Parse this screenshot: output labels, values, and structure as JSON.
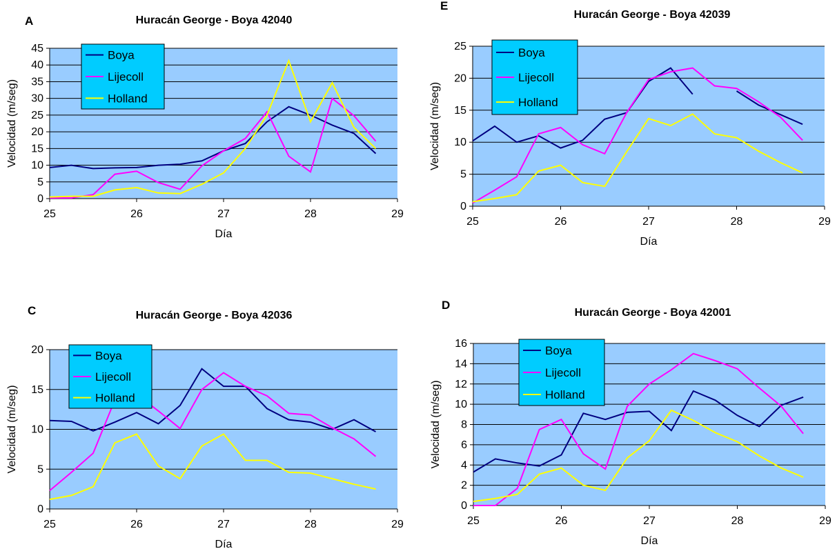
{
  "colors": {
    "plot_bg": "#99ccff",
    "legend_bg": "#00ccff",
    "grid": "#000000",
    "boya": "#000080",
    "lijecoll": "#ff00ff",
    "holland": "#ffff00"
  },
  "chart_data": [
    {
      "panel": "A",
      "type": "line",
      "title": "Huracán George - Boya 42040",
      "xlabel": "Día",
      "ylabel": "Velocidad (m/seg)",
      "xlim": [
        25,
        29
      ],
      "ylim": [
        0,
        45
      ],
      "xticks": [
        25,
        26,
        27,
        28,
        29
      ],
      "yticks": [
        0,
        5,
        10,
        15,
        20,
        25,
        30,
        35,
        40,
        45
      ],
      "grid": true,
      "legend": "top-left",
      "series": [
        {
          "name": "Boya",
          "color": "#000080",
          "points": [
            [
              25,
              9.3
            ],
            [
              25.25,
              10
            ],
            [
              25.5,
              9
            ],
            [
              25.75,
              9.2
            ],
            [
              26,
              9.3
            ],
            [
              26.25,
              10
            ],
            [
              26.5,
              10.3
            ],
            [
              26.75,
              11.3
            ],
            [
              27,
              14.3
            ],
            [
              27.25,
              16.5
            ],
            [
              27.5,
              23
            ],
            [
              27.75,
              27.5
            ],
            [
              28,
              25
            ],
            [
              28.25,
              22
            ],
            [
              28.5,
              19.5
            ],
            [
              28.75,
              13.5
            ]
          ]
        },
        {
          "name": "Lijecoll",
          "color": "#ff00ff",
          "points": [
            [
              25,
              0.2
            ],
            [
              25.25,
              0.2
            ],
            [
              25.5,
              1.2
            ],
            [
              25.75,
              7.3
            ],
            [
              26,
              8.2
            ],
            [
              26.25,
              4.8
            ],
            [
              26.5,
              2.8
            ],
            [
              26.75,
              9.8
            ],
            [
              27,
              14.3
            ],
            [
              27.25,
              18
            ],
            [
              27.5,
              26
            ],
            [
              27.75,
              12.7
            ],
            [
              28,
              8
            ],
            [
              28.25,
              30
            ],
            [
              28.5,
              24.8
            ],
            [
              28.75,
              17.2
            ]
          ]
        },
        {
          "name": "Holland",
          "color": "#ffff00",
          "points": [
            [
              25,
              0.5
            ],
            [
              25.25,
              0.7
            ],
            [
              25.5,
              0.7
            ],
            [
              25.75,
              2.6
            ],
            [
              26,
              3.3
            ],
            [
              26.25,
              1.7
            ],
            [
              26.5,
              1.5
            ],
            [
              26.75,
              4.3
            ],
            [
              27,
              7.7
            ],
            [
              27.25,
              15
            ],
            [
              27.5,
              25
            ],
            [
              27.75,
              41.3
            ],
            [
              28,
              23
            ],
            [
              28.25,
              34.7
            ],
            [
              28.5,
              21.3
            ],
            [
              28.75,
              15
            ]
          ]
        }
      ]
    },
    {
      "panel": "E",
      "type": "line",
      "title": "Huracán George - Boya 42039",
      "xlabel": "Día",
      "ylabel": "Velocidad (m/seg)",
      "xlim": [
        25,
        29
      ],
      "ylim": [
        0,
        25
      ],
      "xticks": [
        25,
        26,
        27,
        28,
        29
      ],
      "yticks": [
        0,
        5,
        10,
        15,
        20,
        25
      ],
      "grid": true,
      "legend": "top-left",
      "series": [
        {
          "name": "Boya",
          "color": "#000080",
          "segments": [
            [
              [
                25,
                10.2
              ],
              [
                25.25,
                12.5
              ],
              [
                25.5,
                10
              ],
              [
                25.75,
                11
              ],
              [
                26,
                9.1
              ],
              [
                26.25,
                10.3
              ],
              [
                26.5,
                13.6
              ],
              [
                26.75,
                14.6
              ],
              [
                27,
                19.5
              ],
              [
                27.25,
                21.6
              ],
              [
                27.5,
                17.5
              ]
            ],
            [
              [
                28,
                18
              ],
              [
                28.25,
                15.8
              ],
              [
                28.5,
                14.3
              ],
              [
                28.75,
                12.8
              ]
            ]
          ]
        },
        {
          "name": "Lijecoll",
          "color": "#ff00ff",
          "points": [
            [
              25,
              0.5
            ],
            [
              25.25,
              2.5
            ],
            [
              25.5,
              4.6
            ],
            [
              25.75,
              11.3
            ],
            [
              26,
              12.3
            ],
            [
              26.25,
              9.6
            ],
            [
              26.5,
              8.2
            ],
            [
              26.75,
              14.6
            ],
            [
              27,
              19.8
            ],
            [
              27.25,
              21
            ],
            [
              27.5,
              21.6
            ],
            [
              27.75,
              18.8
            ],
            [
              28,
              18.4
            ],
            [
              28.25,
              16.3
            ],
            [
              28.5,
              13.9
            ],
            [
              28.75,
              10.3
            ]
          ]
        },
        {
          "name": "Holland",
          "color": "#ffff00",
          "points": [
            [
              25,
              0.7
            ],
            [
              25.25,
              1.2
            ],
            [
              25.5,
              1.8
            ],
            [
              25.75,
              5.5
            ],
            [
              26,
              6.4
            ],
            [
              26.25,
              3.7
            ],
            [
              26.5,
              3.1
            ],
            [
              26.75,
              8.5
            ],
            [
              27,
              13.7
            ],
            [
              27.25,
              12.6
            ],
            [
              27.5,
              14.4
            ],
            [
              27.75,
              11.3
            ],
            [
              28,
              10.7
            ],
            [
              28.25,
              8.6
            ],
            [
              28.5,
              6.8
            ],
            [
              28.75,
              5.2
            ]
          ]
        }
      ]
    },
    {
      "panel": "C",
      "type": "line",
      "title": "Huracán George - Boya 42036",
      "xlabel": "Día",
      "ylabel": "Velocidad (m/seg)",
      "xlim": [
        25,
        29
      ],
      "ylim": [
        0,
        20
      ],
      "xticks": [
        25,
        26,
        27,
        28,
        29
      ],
      "yticks": [
        0,
        5,
        10,
        15,
        20
      ],
      "grid": true,
      "legend": "top-left",
      "series": [
        {
          "name": "Boya",
          "color": "#000080",
          "points": [
            [
              25,
              11.1
            ],
            [
              25.25,
              11
            ],
            [
              25.5,
              9.8
            ],
            [
              25.75,
              10.9
            ],
            [
              26,
              12.1
            ],
            [
              26.25,
              10.7
            ],
            [
              26.5,
              13
            ],
            [
              26.75,
              17.6
            ],
            [
              27,
              15.4
            ],
            [
              27.25,
              15.4
            ],
            [
              27.5,
              12.6
            ],
            [
              27.75,
              11.2
            ],
            [
              28,
              10.9
            ],
            [
              28.25,
              10
            ],
            [
              28.5,
              11.2
            ],
            [
              28.75,
              9.7
            ]
          ]
        },
        {
          "name": "Lijecoll",
          "color": "#ff00ff",
          "points": [
            [
              25,
              2.3
            ],
            [
              25.25,
              4.6
            ],
            [
              25.5,
              7
            ],
            [
              25.75,
              13.7
            ],
            [
              26,
              14.4
            ],
            [
              26.25,
              12.3
            ],
            [
              26.5,
              10.1
            ],
            [
              26.75,
              15
            ],
            [
              27,
              17.1
            ],
            [
              27.25,
              15.4
            ],
            [
              27.5,
              14.2
            ],
            [
              27.75,
              12
            ],
            [
              28,
              11.8
            ],
            [
              28.25,
              10.2
            ],
            [
              28.5,
              8.8
            ],
            [
              28.75,
              6.6
            ]
          ]
        },
        {
          "name": "Holland",
          "color": "#ffff00",
          "points": [
            [
              25,
              1.2
            ],
            [
              25.25,
              1.7
            ],
            [
              25.5,
              2.8
            ],
            [
              25.75,
              8.3
            ],
            [
              26,
              9.4
            ],
            [
              26.25,
              5.4
            ],
            [
              26.5,
              3.8
            ],
            [
              26.75,
              7.9
            ],
            [
              27,
              9.4
            ],
            [
              27.25,
              6.1
            ],
            [
              27.5,
              6.1
            ],
            [
              27.75,
              4.6
            ],
            [
              28,
              4.5
            ],
            [
              28.25,
              3.8
            ],
            [
              28.5,
              3.1
            ],
            [
              28.75,
              2.5
            ]
          ]
        }
      ]
    },
    {
      "panel": "D",
      "type": "line",
      "title": "Huracán George - Boya 42001",
      "xlabel": "Día",
      "ylabel": "Velocidad (m/seg)",
      "xlim": [
        25,
        29
      ],
      "ylim": [
        0,
        16
      ],
      "xticks": [
        25,
        26,
        27,
        28,
        29
      ],
      "yticks": [
        0,
        2,
        4,
        6,
        8,
        10,
        12,
        14,
        16
      ],
      "grid": true,
      "legend": "top-left",
      "series": [
        {
          "name": "Boya",
          "color": "#000080",
          "points": [
            [
              25,
              3.3
            ],
            [
              25.25,
              4.6
            ],
            [
              25.5,
              4.2
            ],
            [
              25.75,
              3.9
            ],
            [
              26,
              5
            ],
            [
              26.25,
              9.1
            ],
            [
              26.5,
              8.5
            ],
            [
              26.75,
              9.2
            ],
            [
              27,
              9.3
            ],
            [
              27.25,
              7.4
            ],
            [
              27.5,
              11.3
            ],
            [
              27.75,
              10.4
            ],
            [
              28,
              8.9
            ],
            [
              28.25,
              7.8
            ],
            [
              28.5,
              9.9
            ],
            [
              28.75,
              10.7
            ]
          ]
        },
        {
          "name": "Lijecoll",
          "color": "#ff00ff",
          "points": [
            [
              25,
              0
            ],
            [
              25.25,
              0
            ],
            [
              25.5,
              1.7
            ],
            [
              25.75,
              7.5
            ],
            [
              26,
              8.5
            ],
            [
              26.25,
              5.1
            ],
            [
              26.5,
              3.6
            ],
            [
              26.75,
              9.8
            ],
            [
              27,
              12
            ],
            [
              27.25,
              13.4
            ],
            [
              27.5,
              15
            ],
            [
              27.75,
              14.3
            ],
            [
              28,
              13.5
            ],
            [
              28.25,
              11.6
            ],
            [
              28.5,
              9.8
            ],
            [
              28.75,
              7.1
            ]
          ]
        },
        {
          "name": "Holland",
          "color": "#ffff00",
          "points": [
            [
              25,
              0.4
            ],
            [
              25.25,
              0.7
            ],
            [
              25.5,
              1.1
            ],
            [
              25.75,
              3.1
            ],
            [
              26,
              3.7
            ],
            [
              26.25,
              2
            ],
            [
              26.5,
              1.5
            ],
            [
              26.75,
              4.7
            ],
            [
              27,
              6.4
            ],
            [
              27.25,
              9.4
            ],
            [
              27.5,
              8.4
            ],
            [
              27.75,
              7.2
            ],
            [
              28,
              6.3
            ],
            [
              28.25,
              4.9
            ],
            [
              28.5,
              3.7
            ],
            [
              28.75,
              2.8
            ]
          ]
        }
      ]
    }
  ]
}
